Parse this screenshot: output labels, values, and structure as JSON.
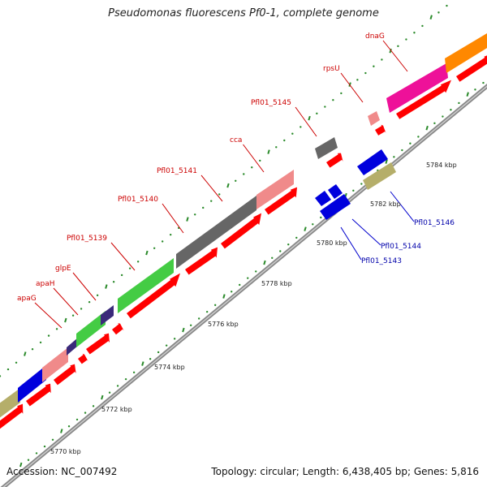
{
  "title": "Pseudomonas fluorescens Pf0-1, complete genome",
  "accession": "Accession: NC_007492",
  "summary": "Topology: circular; Length: 6,438,405 bp; Genes: 5,816",
  "scale_labels": [
    {
      "text": "5770 kbp"
    },
    {
      "text": "5772 kbp"
    },
    {
      "text": "5774 kbp"
    },
    {
      "text": "5776 kbp"
    },
    {
      "text": "5778 kbp"
    },
    {
      "text": "5780 kbp"
    },
    {
      "text": "5782 kbp"
    },
    {
      "text": "5784 kbp"
    }
  ],
  "gene_labels": [
    {
      "text": "dnaG",
      "strand": "forward"
    },
    {
      "text": "rpsU",
      "strand": "forward"
    },
    {
      "text": "Pfl01_5145",
      "strand": "forward"
    },
    {
      "text": "cca",
      "strand": "forward"
    },
    {
      "text": "Pfl01_5141",
      "strand": "forward"
    },
    {
      "text": "Pfl01_5140",
      "strand": "forward"
    },
    {
      "text": "Pfl01_5139",
      "strand": "forward"
    },
    {
      "text": "glpE",
      "strand": "forward"
    },
    {
      "text": "apaH",
      "strand": "forward"
    },
    {
      "text": "apaG",
      "strand": "forward"
    },
    {
      "text": "Pfl01_5146",
      "strand": "reverse"
    },
    {
      "text": "Pfl01_5144",
      "strand": "reverse"
    },
    {
      "text": "Pfl01_5143",
      "strand": "reverse"
    }
  ],
  "colors": {
    "backbone": "#888888",
    "forward_label": "#cc0000",
    "reverse_label": "#0000aa",
    "cds": "#ff0000",
    "tick": "#2a8a2a",
    "leader": "#cc0000",
    "leader_reverse": "#0000cc"
  }
}
